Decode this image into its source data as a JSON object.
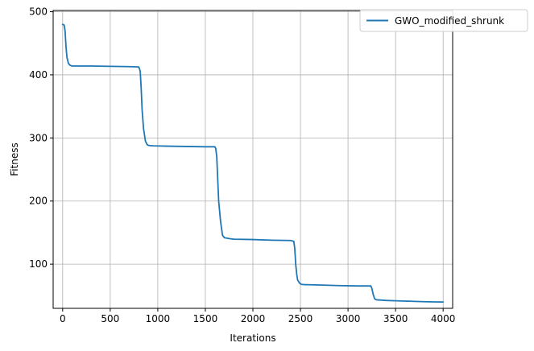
{
  "chart_data": {
    "type": "line",
    "title": "",
    "xlabel": "Iterations",
    "ylabel": "Fitness",
    "xlim": [
      -100,
      4100
    ],
    "ylim": [
      30,
      502
    ],
    "xticks": [
      0,
      500,
      1000,
      1500,
      2000,
      2500,
      3000,
      3500,
      4000
    ],
    "yticks": [
      100,
      200,
      300,
      400,
      500
    ],
    "grid": true,
    "legend_position": "top-right",
    "series": [
      {
        "name": "GWO_modified_shrunk",
        "color": "#1f77b4",
        "x": [
          0,
          15,
          25,
          35,
          45,
          60,
          80,
          100,
          300,
          500,
          700,
          800,
          815,
          825,
          835,
          850,
          870,
          890,
          910,
          950,
          1100,
          1300,
          1500,
          1600,
          1610,
          1620,
          1630,
          1640,
          1660,
          1680,
          1700,
          1750,
          1800,
          2000,
          2200,
          2400,
          2430,
          2440,
          2450,
          2460,
          2470,
          2490,
          2510,
          2550,
          2700,
          2900,
          3100,
          3240,
          3250,
          3265,
          3280,
          3300,
          3350,
          3400,
          3500,
          3600,
          3700,
          3800,
          3900,
          4000
        ],
        "y": [
          480,
          479,
          470,
          445,
          428,
          418,
          415,
          414,
          414,
          413.5,
          413,
          412.5,
          406,
          380,
          345,
          315,
          295,
          289,
          288,
          287.5,
          287,
          286.5,
          286,
          286,
          283,
          270,
          235,
          200,
          168,
          146,
          142,
          140.5,
          139.5,
          139,
          138,
          137.5,
          136,
          125,
          100,
          85,
          75,
          70,
          68,
          67.5,
          67,
          66,
          65.5,
          65.5,
          62,
          52,
          45,
          43.5,
          43,
          42.5,
          42,
          41.5,
          41,
          40.5,
          40.2,
          40
        ]
      }
    ]
  }
}
